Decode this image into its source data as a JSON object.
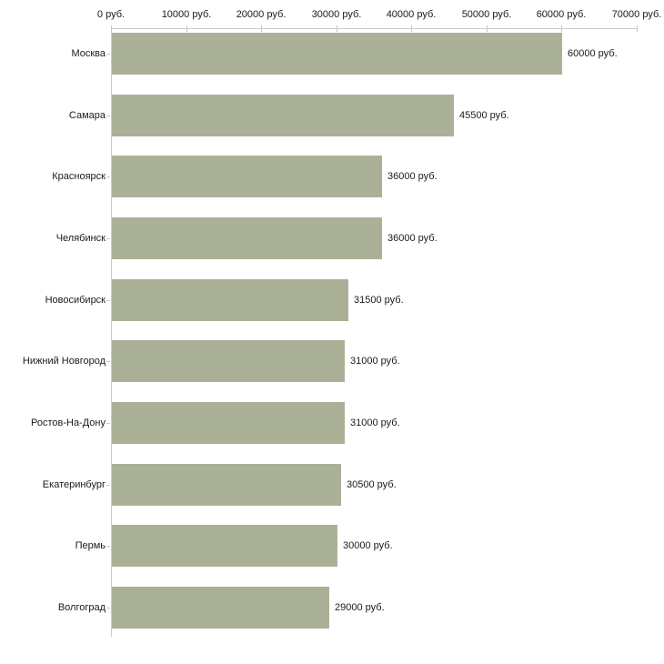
{
  "chart_data": {
    "type": "bar",
    "orientation": "horizontal",
    "title": "",
    "xlabel": "",
    "ylabel": "",
    "grid": false,
    "legend": false,
    "categories": [
      "Москва",
      "Самара",
      "Красноярск",
      "Челябинск",
      "Новосибирск",
      "Нижний Новгород",
      "Ростов-На-Дону",
      "Екатеринбург",
      "Пермь",
      "Волгоград"
    ],
    "values": [
      60000,
      45500,
      36000,
      36000,
      31500,
      31000,
      31000,
      30500,
      30000,
      29000
    ],
    "value_labels": [
      "60000 руб.",
      "45500 руб.",
      "36000 руб.",
      "36000 руб.",
      "31500 руб.",
      "31000 руб.",
      "31000 руб.",
      "30500 руб.",
      "30000 руб.",
      "29000 руб."
    ],
    "x_axis": {
      "position": "top",
      "range": [
        0,
        70000
      ],
      "ticks": [
        0,
        10000,
        20000,
        30000,
        40000,
        50000,
        60000,
        70000
      ],
      "tick_labels": [
        "0 руб.",
        "10000 руб.",
        "20000 руб.",
        "30000 руб.",
        "40000 руб.",
        "50000 руб.",
        "60000 руб.",
        "70000 руб."
      ]
    },
    "colors": {
      "bar_fill": "#abb197",
      "axis_line": "#c9c9c9",
      "x_tick": "#cbcb9b",
      "y_tick": "#c9c9c9",
      "text": "#1a1a1a",
      "background": "#ffffff"
    }
  }
}
